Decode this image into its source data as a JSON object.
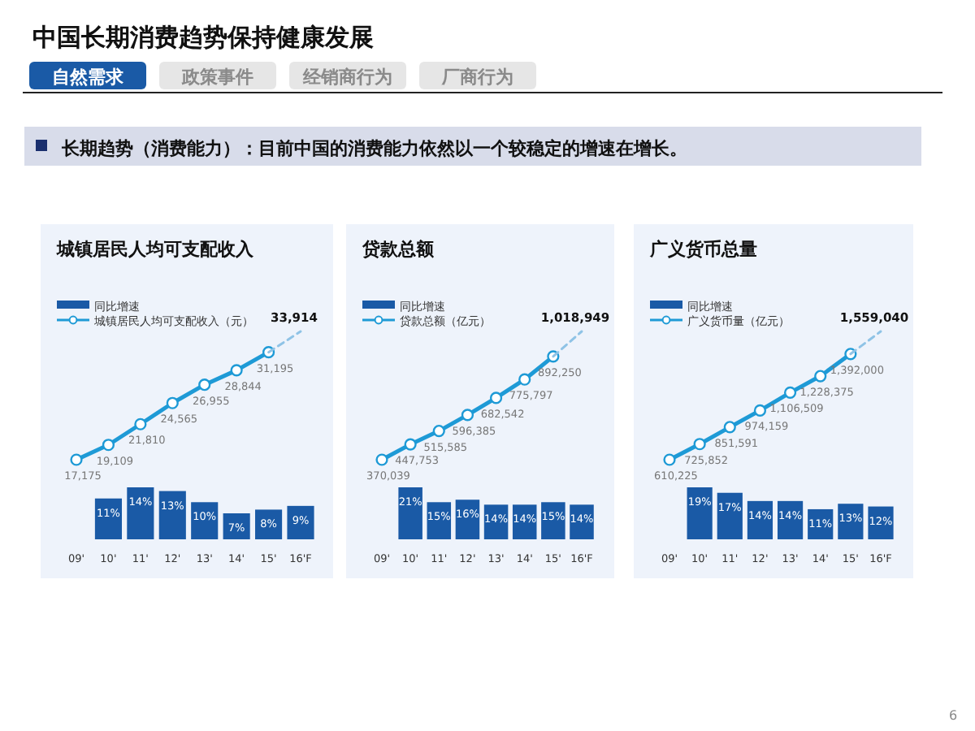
{
  "chart_data": [
    {
      "type": "other",
      "title": "中国长期消费趋势保持健康发展",
      "annotations": [
        "自然需求",
        "政策事件",
        "经销商行为",
        "厂商行为",
        "长期趋势（消费能力）：目前中国的消费能力依然以一个较稳定的增速在增长。",
        "6"
      ]
    },
    {
      "type": "line",
      "title": "城镇居民人均可支配收入",
      "categories": [
        null,
        null,
        null,
        null,
        null,
        null,
        null,
        null
      ],
      "legend": "top left",
      "series": [
        {
          "name": "城镇居民人均可支配收入（元）",
          "color": "#1e9ad6",
          "marker": "circle",
          "values": [
            17175,
            19109,
            21810,
            24565,
            26955,
            28844,
            31195,
            null
          ],
          "value_labels": [
            "17,175",
            "19,109",
            "21,810",
            "24,565",
            "26,955",
            "28,844",
            "31,195",
            null
          ]
        },
        {
          "color": "#8fc3e6",
          "line_style": "dashed",
          "marker": "none",
          "values": [
            null,
            null,
            null,
            null,
            null,
            null,
            31195,
            33914
          ],
          "value_labels": [
            null,
            null,
            null,
            null,
            null,
            null,
            null,
            "33,914"
          ]
        }
      ]
    },
    {
      "type": "bar",
      "categories": [
        "09'",
        "10'",
        "11'",
        "12'",
        "13'",
        "14'",
        "15'",
        "16'F"
      ],
      "legend": "top left",
      "series": [
        {
          "name": "同比增速",
          "color": "#1a5aa6",
          "values": [
            null,
            11,
            14,
            13,
            10,
            7,
            8,
            9
          ],
          "value_labels": [
            null,
            "11%",
            "14%",
            "13%",
            "10%",
            "7%",
            "8%",
            "9%"
          ]
        }
      ]
    },
    {
      "type": "line",
      "title": "贷款总额",
      "categories": [
        null,
        null,
        null,
        null,
        null,
        null,
        null,
        null
      ],
      "legend": "top left",
      "series": [
        {
          "name": "贷款总额（亿元）",
          "color": "#1e9ad6",
          "marker": "circle",
          "values": [
            370039,
            447753,
            515585,
            596385,
            682542,
            775797,
            892250,
            null
          ],
          "value_labels": [
            "370,039",
            "447,753",
            "515,585",
            "596,385",
            "682,542",
            "775,797",
            "892,250",
            null
          ]
        },
        {
          "color": "#8fc3e6",
          "line_style": "dashed",
          "marker": "none",
          "values": [
            null,
            null,
            null,
            null,
            null,
            null,
            892250,
            1018949
          ],
          "value_labels": [
            null,
            null,
            null,
            null,
            null,
            null,
            null,
            "1,018,949"
          ]
        }
      ]
    },
    {
      "type": "bar",
      "categories": [
        "09'",
        "10'",
        "11'",
        "12'",
        "13'",
        "14'",
        "15'",
        "16'F"
      ],
      "legend": "top left",
      "series": [
        {
          "name": "同比增速",
          "color": "#1a5aa6",
          "values": [
            null,
            21,
            15,
            16,
            14,
            14,
            15,
            14
          ],
          "value_labels": [
            null,
            "21%",
            "15%",
            "16%",
            "14%",
            "14%",
            "15%",
            "14%"
          ]
        }
      ]
    },
    {
      "type": "line",
      "title": "广义货币总量",
      "categories": [
        null,
        null,
        null,
        null,
        null,
        null,
        null,
        null
      ],
      "legend": "top left",
      "series": [
        {
          "name": "广义货币量（亿元）",
          "color": "#1e9ad6",
          "marker": "circle",
          "values": [
            610225,
            725852,
            851591,
            974159,
            1106509,
            1228375,
            1392000,
            null
          ],
          "value_labels": [
            "610,225",
            "725,852",
            "851,591",
            "974,159",
            "1,106,509",
            "1,228,375",
            "1,392,000",
            null
          ]
        },
        {
          "color": "#8fc3e6",
          "line_style": "dashed",
          "marker": "none",
          "values": [
            null,
            null,
            null,
            null,
            null,
            null,
            1392000,
            1559040
          ],
          "value_labels": [
            null,
            null,
            null,
            null,
            null,
            null,
            null,
            "1,559,040"
          ]
        }
      ]
    },
    {
      "type": "bar",
      "categories": [
        "09'",
        "10'",
        "11'",
        "12'",
        "13'",
        "14'",
        "15'",
        "16'F"
      ],
      "legend": "top left",
      "series": [
        {
          "name": "同比增速",
          "color": "#1a5aa6",
          "values": [
            null,
            19,
            17,
            14,
            14,
            11,
            13,
            12
          ],
          "value_labels": [
            null,
            "19%",
            "17%",
            "14%",
            "14%",
            "11%",
            "13%",
            "12%"
          ]
        }
      ]
    }
  ]
}
